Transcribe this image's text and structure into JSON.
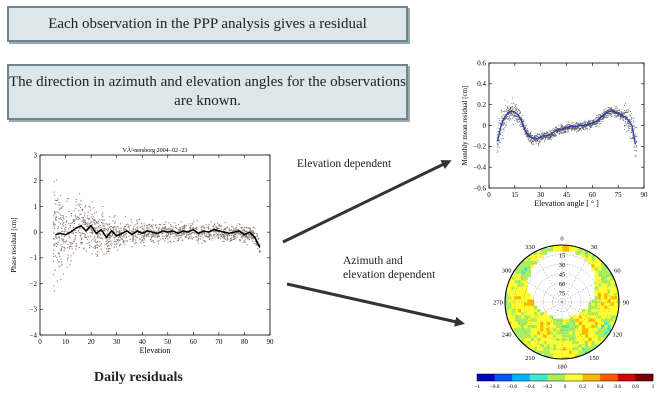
{
  "callouts": {
    "line1": "Each observation in the PPP analysis gives a residual",
    "line2": "The direction in azimuth and elevation angles for the observations are known."
  },
  "labels": {
    "elevation_dependent": "Elevation dependent",
    "azimuth_elevation_line1": "Azimuth and",
    "azimuth_elevation_line2": "elevation dependent",
    "daily_residuals": "Daily residuals"
  },
  "chart_data": [
    {
      "type": "scatter",
      "title": "VÃ¤nersborg 2004−02−23",
      "xlabel": "Elevation",
      "ylabel": "Phase residual [cm]",
      "xlim": [
        0,
        90
      ],
      "ylim": [
        -4,
        3
      ],
      "xticks": [
        0,
        10,
        20,
        30,
        40,
        50,
        60,
        70,
        80,
        90
      ],
      "yticks": [
        -4,
        -3,
        -2,
        -1,
        0,
        1,
        2,
        3
      ],
      "grid": false,
      "series": [
        {
          "kind": "mean-line",
          "x": [
            6,
            8,
            10,
            12,
            14,
            16,
            18,
            20,
            22,
            24,
            26,
            28,
            30,
            32,
            34,
            36,
            38,
            40,
            42,
            44,
            46,
            48,
            50,
            52,
            54,
            56,
            58,
            60,
            62,
            64,
            66,
            68,
            70,
            72,
            74,
            76,
            78,
            80,
            82,
            84,
            86
          ],
          "y": [
            -0.1,
            -0.05,
            -0.1,
            0.0,
            0.15,
            0.25,
            0.05,
            0.25,
            -0.05,
            0.1,
            -0.2,
            0.05,
            -0.15,
            -0.05,
            0.05,
            -0.1,
            0.05,
            -0.05,
            0.05,
            0.0,
            -0.05,
            0.05,
            0.0,
            0.05,
            -0.05,
            0.05,
            0.0,
            0.1,
            -0.05,
            0.05,
            0.0,
            0.1,
            0.05,
            0.0,
            -0.05,
            0.0,
            0.05,
            -0.1,
            0.0,
            -0.2,
            -0.6
          ]
        }
      ]
    },
    {
      "type": "line",
      "title": "",
      "xlabel": "Elevation angle [ ° ]",
      "ylabel": "Monthly mean residual [cm]",
      "xlim": [
        0,
        90
      ],
      "ylim": [
        -0.6,
        0.6
      ],
      "xticks": [
        0,
        15,
        30,
        45,
        60,
        75,
        90
      ],
      "yticks": [
        -0.6,
        -0.4,
        -0.2,
        0,
        0.2,
        0.4,
        0.6
      ],
      "grid": false,
      "series": [
        {
          "kind": "mean-line",
          "x": [
            5,
            7,
            9,
            11,
            13,
            15,
            17,
            19,
            21,
            23,
            25,
            27,
            29,
            31,
            33,
            35,
            37,
            39,
            41,
            43,
            45,
            47,
            49,
            51,
            53,
            55,
            57,
            59,
            61,
            63,
            65,
            67,
            69,
            71,
            73,
            75,
            77,
            79,
            81,
            83,
            85
          ],
          "y": [
            -0.15,
            0.0,
            0.08,
            0.12,
            0.14,
            0.13,
            0.1,
            0.04,
            -0.05,
            -0.1,
            -0.12,
            -0.13,
            -0.12,
            -0.1,
            -0.1,
            -0.09,
            -0.07,
            -0.05,
            -0.04,
            -0.03,
            -0.02,
            -0.01,
            -0.01,
            -0.01,
            0.0,
            0.0,
            0.01,
            0.02,
            0.03,
            0.05,
            0.08,
            0.11,
            0.13,
            0.14,
            0.13,
            0.12,
            0.1,
            0.08,
            0.05,
            0.0,
            -0.18
          ]
        }
      ]
    },
    {
      "type": "heatmap",
      "projection": "polar",
      "azimuth_ticks": [
        0,
        30,
        60,
        90,
        120,
        150,
        180,
        210,
        240,
        270,
        300,
        330
      ],
      "elevation_ticks": [
        15,
        30,
        45,
        60,
        75
      ],
      "colorbar": {
        "ticks": [
          "−1",
          "−0.8",
          "−0.6",
          "−0.4",
          "−0.2",
          "0",
          "0.2",
          "0.4",
          "0.6",
          "0.8",
          "1"
        ],
        "range": [
          -1,
          1
        ],
        "colors": [
          "#0000c8",
          "#0055ff",
          "#00b4ff",
          "#40e8d0",
          "#a8ee60",
          "#ffff30",
          "#ffb800",
          "#ff5a00",
          "#d80000",
          "#7a0000"
        ]
      }
    }
  ]
}
